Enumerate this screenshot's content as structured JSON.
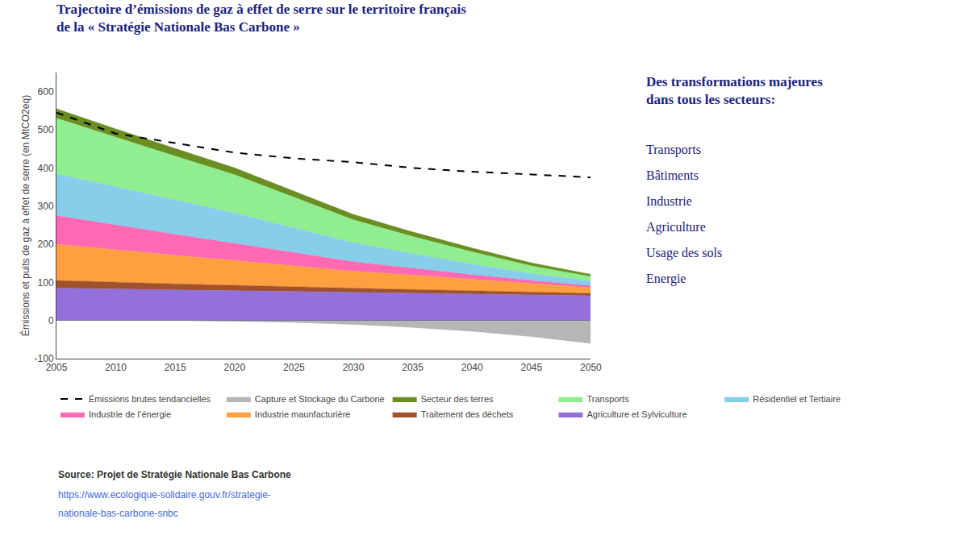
{
  "chart_data": {
    "type": "area",
    "stacked": true,
    "title": "Trajectoire d’émissions de gaz à effet de serre sur le territoire français\nde la « Stratégie Nationale Bas Carbone »",
    "title_color": "#1a237e",
    "ylabel": "Émissions et puits de gaz à effet de serre (en MtCO2eq)",
    "x": [
      2005,
      2010,
      2015,
      2020,
      2025,
      2030,
      2035,
      2040,
      2045,
      2050
    ],
    "xlim": [
      2005,
      2050
    ],
    "xticks": [
      2005,
      2010,
      2015,
      2020,
      2025,
      2030,
      2035,
      2040,
      2045,
      2050
    ],
    "ylim": [
      -100,
      650
    ],
    "yticks": [
      -100,
      0,
      100,
      200,
      300,
      400,
      500,
      600
    ],
    "grid": false,
    "legend": "bottom",
    "series": [
      {
        "name": "Agriculture et Sylviculture",
        "color": "#9370DB",
        "values": [
          85,
          82,
          80,
          78,
          76,
          74,
          72,
          70,
          68,
          65
        ]
      },
      {
        "name": "Traitement des déchets",
        "color": "#A0522D",
        "values": [
          20,
          18,
          16,
          14,
          12,
          10,
          9,
          8,
          7,
          6
        ]
      },
      {
        "name": "Industrie maunfacturière",
        "color": "#FFA040",
        "values": [
          95,
          85,
          75,
          65,
          55,
          45,
          38,
          30,
          22,
          15
        ]
      },
      {
        "name": "Industrie de l’énergie",
        "color": "#FF69B4",
        "values": [
          75,
          65,
          55,
          45,
          35,
          25,
          18,
          12,
          8,
          5
        ]
      },
      {
        "name": "Résidentiel et Tertiaire",
        "color": "#87CEEB",
        "values": [
          110,
          100,
          90,
          80,
          65,
          50,
          38,
          28,
          18,
          12
        ]
      },
      {
        "name": "Transports",
        "color": "#90EE90",
        "values": [
          145,
          130,
          115,
          100,
          80,
          60,
          45,
          32,
          20,
          12
        ]
      },
      {
        "name": "Secteur des terres",
        "color": "#6B8E23",
        "values": [
          25,
          22,
          20,
          18,
          16,
          14,
          12,
          10,
          8,
          6
        ]
      },
      {
        "name": "Capture et Stockage du Carbone",
        "type": "fill",
        "color": "#A9A9A9",
        "values": [
          0,
          0,
          0,
          -2,
          -5,
          -10,
          -18,
          -28,
          -42,
          -60
        ]
      },
      {
        "name": "Émissions brutes tendancielles",
        "type": "line",
        "line_style": "dashed",
        "color": "#000000",
        "values": [
          545,
          490,
          465,
          440,
          425,
          415,
          400,
          390,
          383,
          375
        ]
      }
    ],
    "annotations": {
      "panel_title": "Des transformations majeures\ndans tous les secteurs:",
      "panel_items": [
        "Transports",
        "Bâtiments",
        "Industrie",
        "Agriculture",
        "Usage des sols",
        "Energie"
      ],
      "source": "Source: Projet de Stratégie Nationale Bas Carbone",
      "source_urls": [
        "https://www.ecologique-solidaire.gouv.fr/strategie-",
        "nationale-bas-carbone-snbc"
      ]
    },
    "link_color": "#4169E1"
  }
}
